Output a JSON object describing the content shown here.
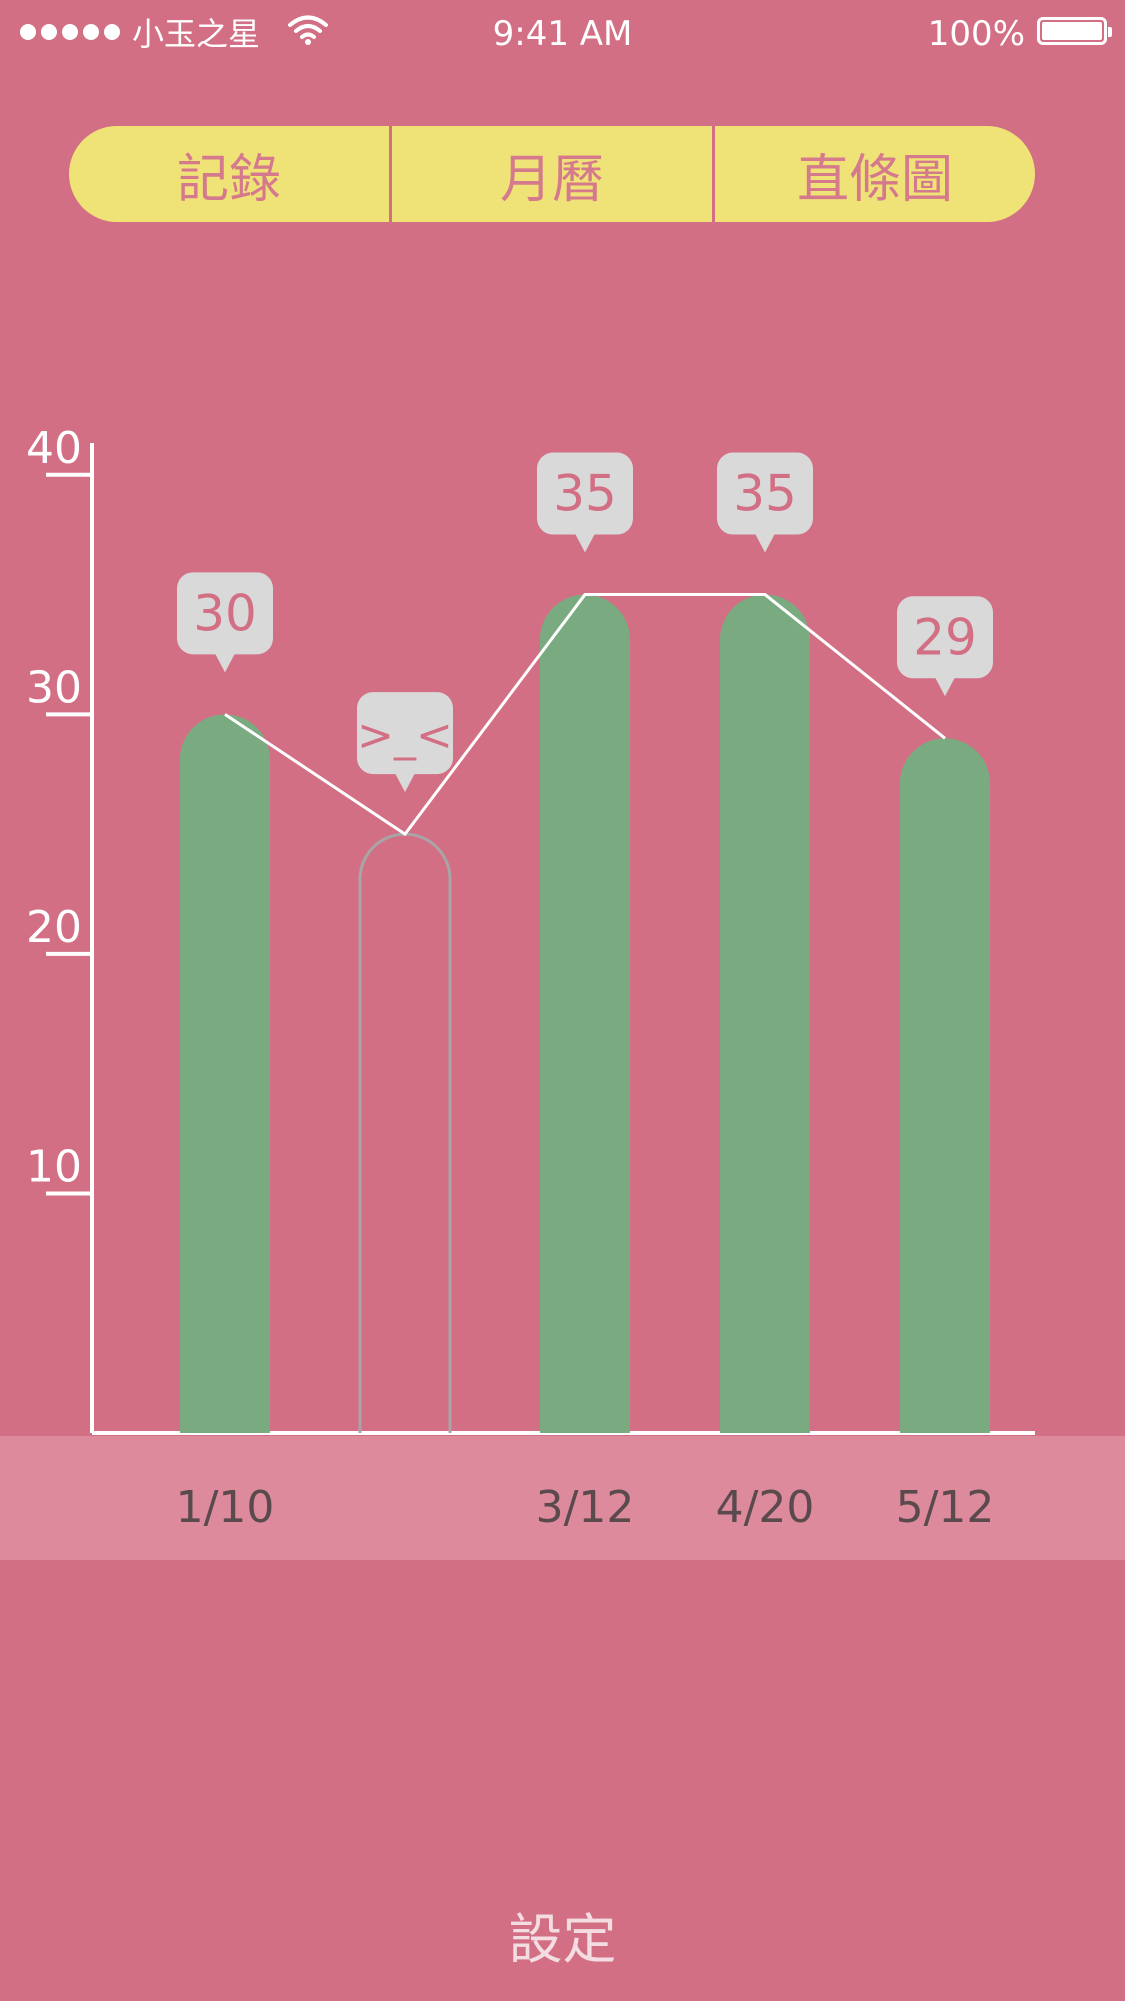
{
  "status_bar": {
    "carrier": "小玉之星",
    "time": "9:41 AM",
    "battery": "100%"
  },
  "tabs": [
    {
      "label": "記錄"
    },
    {
      "label": "月曆"
    },
    {
      "label": "直條圖"
    }
  ],
  "chart_data": {
    "type": "bar",
    "categories": [
      "1/10",
      "",
      "3/12",
      "4/20",
      "5/12"
    ],
    "values": [
      30,
      25,
      35,
      35,
      29
    ],
    "data_labels": [
      "30",
      ">_<",
      "35",
      "35",
      "29"
    ],
    "missing": [
      false,
      true,
      false,
      false,
      false
    ],
    "yticks": [
      10,
      20,
      30,
      40
    ],
    "ylim": [
      0,
      45
    ],
    "overlay_line": true,
    "colors": {
      "bar": "#7aab80",
      "placeholder_outline": "#a9a4a6",
      "axis": "#ffffff",
      "bubble": "#d9d9d9",
      "bubble_text": "#d36f84",
      "date_text": "#5a4a4e"
    }
  },
  "footer": {
    "settings_label": "設定"
  }
}
